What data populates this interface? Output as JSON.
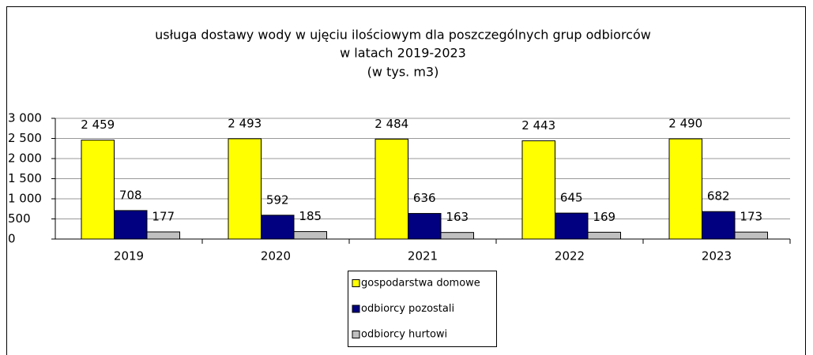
{
  "chart_data": {
    "type": "bar",
    "title": [
      "usługa dostawy wody w ujęciu ilościowym dla poszczególnych grup odbiorców",
      "w latach 2019-2023",
      "(w tys. m3)"
    ],
    "categories": [
      "2019",
      "2020",
      "2021",
      "2022",
      "2023"
    ],
    "series": [
      {
        "name": "gospodarstwa domowe",
        "color": "#ffff00",
        "values": [
          2459,
          2493,
          2484,
          2443,
          2490
        ],
        "value_labels": [
          "2 459",
          "2 493",
          "2 484",
          "2 443",
          "2 490"
        ]
      },
      {
        "name": "odbiorcy pozostali",
        "color": "#000080",
        "values": [
          708,
          592,
          636,
          645,
          682
        ]
      },
      {
        "name": "odbiorcy hurtowi",
        "color": "#c0c0c0",
        "values": [
          177,
          185,
          163,
          169,
          173
        ]
      }
    ],
    "ylim": [
      0,
      3000
    ],
    "yticks": [
      0,
      500,
      {
        "value": 1000,
        "label": "1 000"
      },
      {
        "value": 1500,
        "label": "1 500"
      },
      {
        "value": 2000,
        "label": "2 000"
      },
      {
        "value": 2500,
        "label": "2 500"
      },
      {
        "value": 3000,
        "label": "3 000"
      }
    ],
    "grid": true,
    "legend": "bottom"
  }
}
